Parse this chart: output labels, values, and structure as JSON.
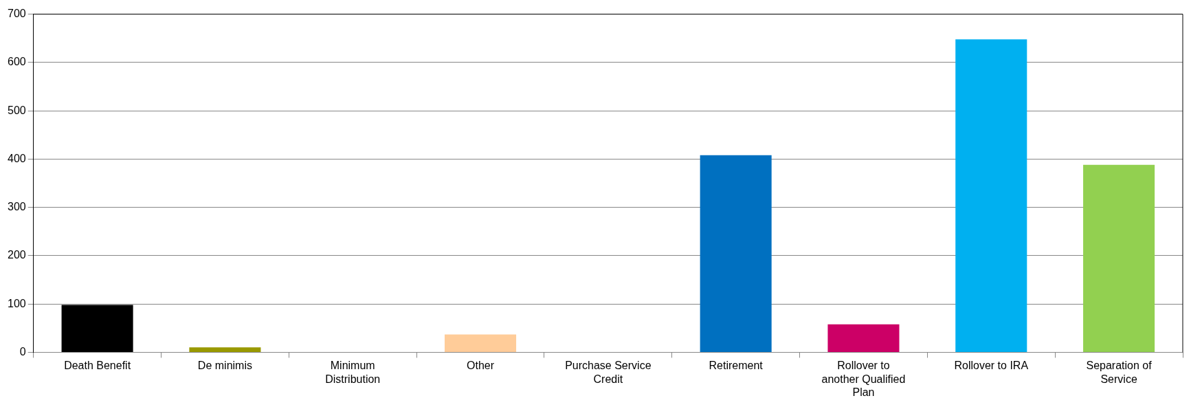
{
  "chart_data": {
    "type": "bar",
    "categories": [
      "Death Benefit",
      "De minimis",
      "Minimum Distribution",
      "Other",
      "Purchase Service Credit",
      "Retirement",
      "Rollover to another Qualified Plan",
      "Rollover to IRA",
      "Separation of Service"
    ],
    "values": [
      98,
      10,
      0,
      37,
      0,
      408,
      58,
      648,
      388
    ],
    "colors": [
      "#000000",
      "#999900",
      "#1f1f5f",
      "#ffcc99",
      "#1f1f5f",
      "#0070c0",
      "#cc0066",
      "#00b0f0",
      "#92d050"
    ],
    "ylim": [
      0,
      700
    ],
    "yticks": [
      0,
      100,
      200,
      300,
      400,
      500,
      600,
      700
    ],
    "grid": "y",
    "legend": false
  }
}
